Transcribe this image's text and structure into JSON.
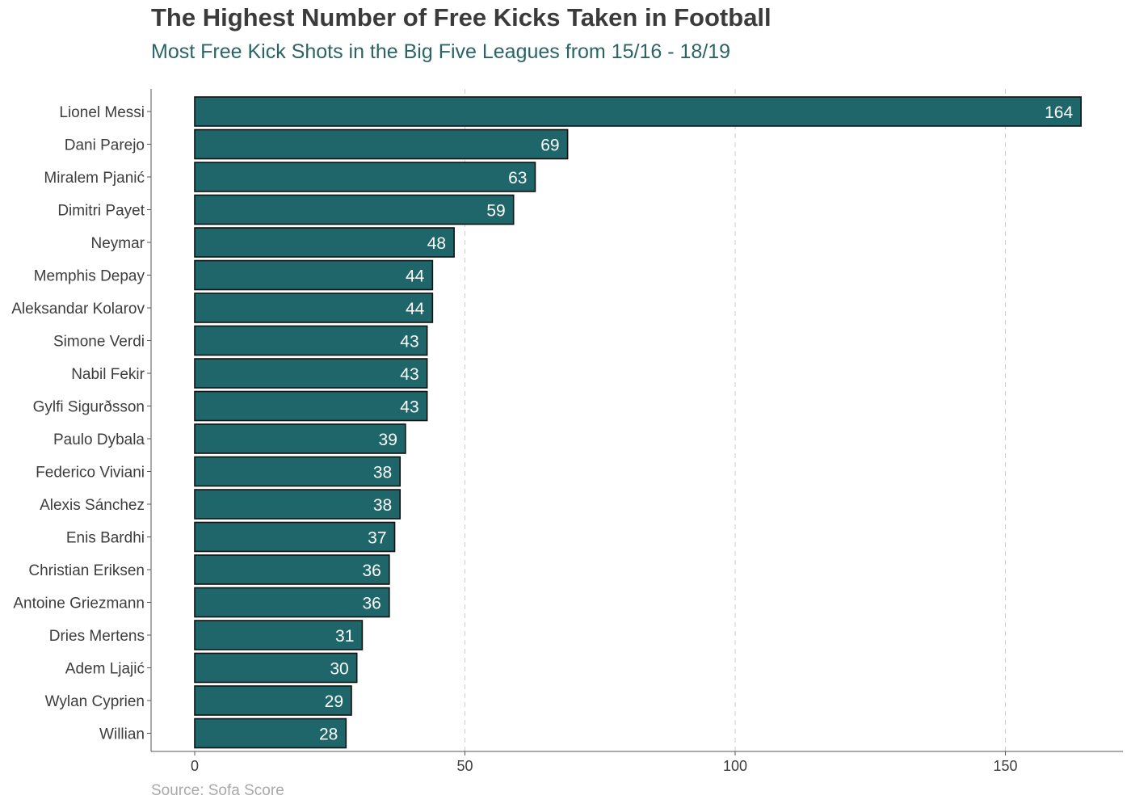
{
  "title": "The Highest Number of Free Kicks Taken in Football",
  "subtitle": "Most Free Kick Shots in the Big Five Leagues from 15/16 - 18/19",
  "caption": "Source: Sofa Score",
  "colors": {
    "bar_fill": "#1e6669",
    "bar_stroke": "#111111",
    "label": "#ffffff",
    "grid": "#cccccc",
    "subtitle": "#2a6466"
  },
  "chart_data": {
    "type": "bar",
    "orientation": "horizontal",
    "title": "The Highest Number of Free Kicks Taken in Football",
    "subtitle": "Most Free Kick Shots in the Big Five Leagues from 15/16 - 18/19",
    "xlabel": "",
    "ylabel": "",
    "categories": [
      "Lionel Messi",
      "Dani Parejo",
      "Miralem Pjanić",
      "Dimitri Payet",
      "Neymar",
      "Memphis Depay",
      "Aleksandar Kolarov",
      "Simone Verdi",
      "Nabil Fekir",
      "Gylfi Sigurðsson",
      "Paulo Dybala",
      "Federico Viviani",
      "Alexis Sánchez",
      "Enis Bardhi",
      "Christian Eriksen",
      "Antoine Griezmann",
      "Dries Mertens",
      "Adem Ljajić",
      "Wylan Cyprien",
      "Willian"
    ],
    "values": [
      164,
      69,
      63,
      59,
      48,
      44,
      44,
      43,
      43,
      43,
      39,
      38,
      38,
      37,
      36,
      36,
      31,
      30,
      29,
      28
    ],
    "xticks": [
      0,
      50,
      100,
      150
    ],
    "xlim": [
      0,
      172
    ],
    "grid": "vertical dashed",
    "data_labels": true
  }
}
